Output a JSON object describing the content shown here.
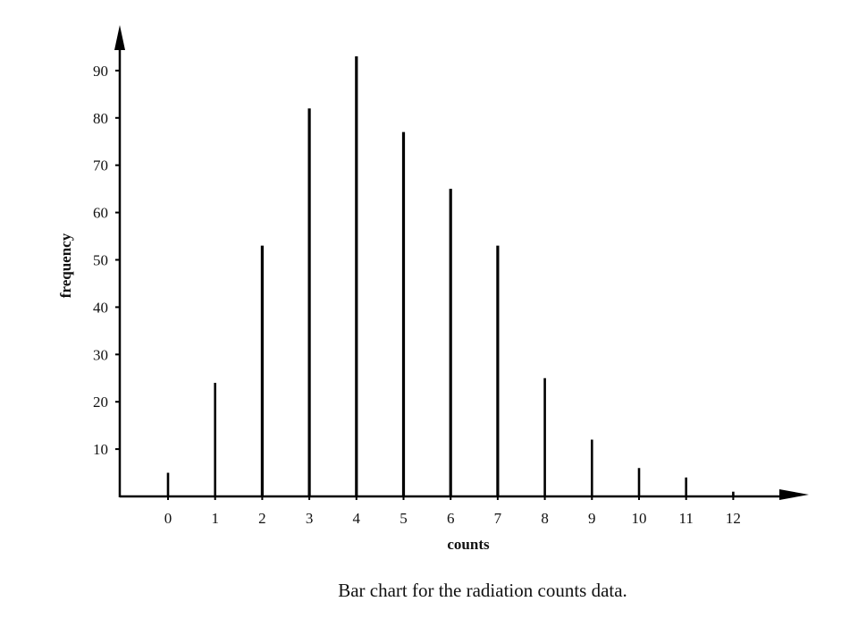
{
  "caption": "Bar chart for the radiation counts data.",
  "chart_data": {
    "type": "bar",
    "categories": [
      "0",
      "1",
      "2",
      "3",
      "4",
      "5",
      "6",
      "7",
      "8",
      "9",
      "10",
      "11",
      "12"
    ],
    "values": [
      5,
      24,
      53,
      82,
      93,
      77,
      65,
      53,
      25,
      12,
      6,
      4,
      1
    ],
    "xlabel": "counts",
    "ylabel": "frequency",
    "ylim": [
      0,
      100
    ],
    "yticks": [
      10,
      20,
      30,
      40,
      50,
      60,
      70,
      80,
      90
    ],
    "grid": false,
    "legend": "none",
    "bar_color": "#000000"
  }
}
